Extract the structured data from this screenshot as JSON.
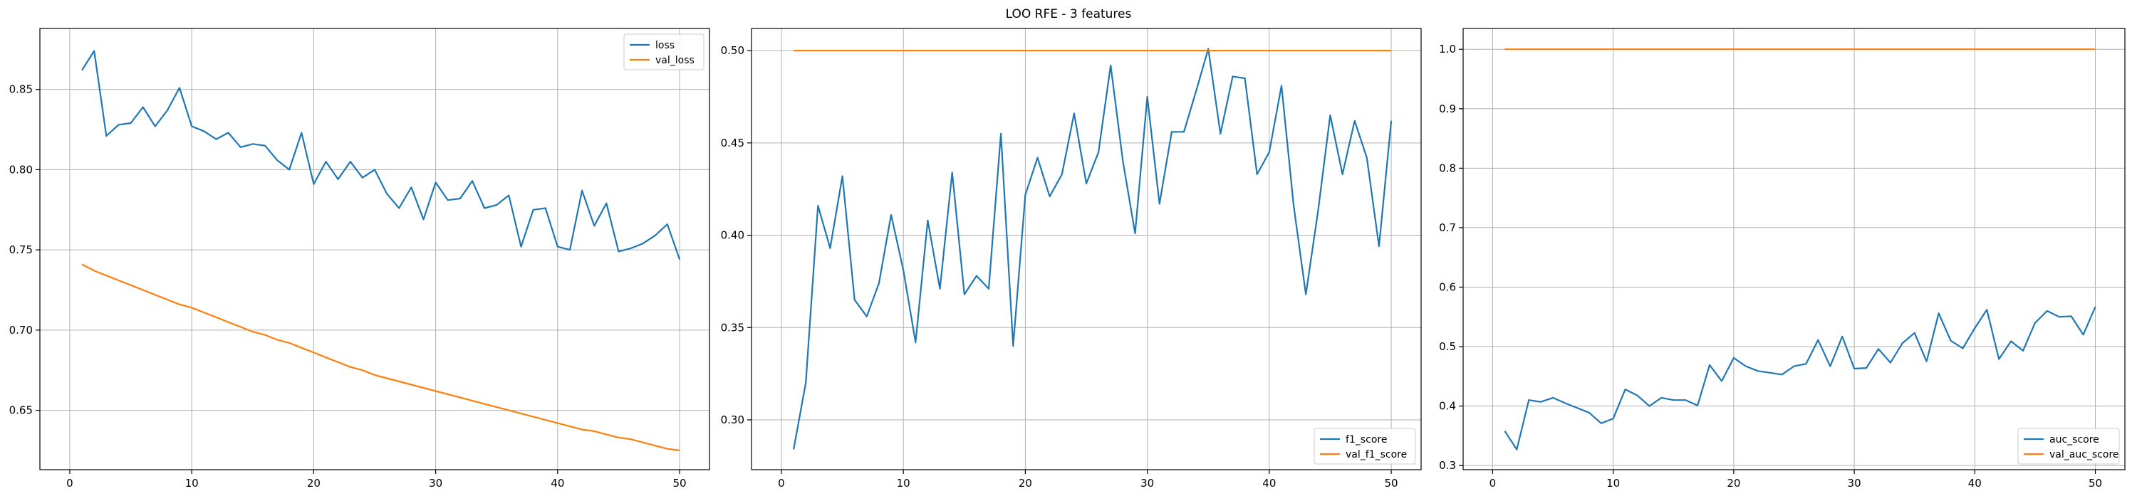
{
  "figure": {
    "title": "LOO RFE - 3 features"
  },
  "colors": {
    "train": "#1f77b4",
    "val": "#ff7f0e",
    "grid": "#b0b0b0",
    "axis": "#000000"
  },
  "chart_data": [
    {
      "type": "line",
      "xlim": [
        -2.45,
        52.45
      ],
      "ylim": [
        0.613,
        0.888
      ],
      "xticks": [
        0,
        10,
        20,
        30,
        40,
        50
      ],
      "yticks": [
        0.65,
        0.7,
        0.75,
        0.8,
        0.85
      ],
      "ytick_labels": [
        "0.65",
        "0.70",
        "0.75",
        "0.80",
        "0.85"
      ],
      "grid": true,
      "legend_loc": "upper-right",
      "x": [
        1,
        2,
        3,
        4,
        5,
        6,
        7,
        8,
        9,
        10,
        11,
        12,
        13,
        14,
        15,
        16,
        17,
        18,
        19,
        20,
        21,
        22,
        23,
        24,
        25,
        26,
        27,
        28,
        29,
        30,
        31,
        32,
        33,
        34,
        35,
        36,
        37,
        38,
        39,
        40,
        41,
        42,
        43,
        44,
        45,
        46,
        47,
        48,
        49,
        50
      ],
      "series": [
        {
          "name": "loss",
          "color_key": "train",
          "values": [
            0.862,
            0.874,
            0.821,
            0.828,
            0.829,
            0.839,
            0.827,
            0.837,
            0.851,
            0.827,
            0.824,
            0.819,
            0.823,
            0.814,
            0.816,
            0.815,
            0.806,
            0.8,
            0.823,
            0.791,
            0.805,
            0.794,
            0.805,
            0.795,
            0.8,
            0.785,
            0.776,
            0.789,
            0.769,
            0.792,
            0.781,
            0.782,
            0.793,
            0.776,
            0.778,
            0.784,
            0.752,
            0.775,
            0.776,
            0.752,
            0.75,
            0.787,
            0.765,
            0.779,
            0.749,
            0.751,
            0.754,
            0.759,
            0.766,
            0.744
          ]
        },
        {
          "name": "val_loss",
          "color_key": "val",
          "values": [
            0.741,
            0.737,
            0.734,
            0.731,
            0.728,
            0.725,
            0.722,
            0.719,
            0.716,
            0.714,
            0.711,
            0.708,
            0.705,
            0.702,
            0.699,
            0.697,
            0.694,
            0.692,
            0.689,
            0.686,
            0.683,
            0.68,
            0.677,
            0.675,
            0.672,
            0.67,
            0.668,
            0.666,
            0.664,
            0.662,
            0.66,
            0.658,
            0.656,
            0.654,
            0.652,
            0.65,
            0.648,
            0.646,
            0.644,
            0.642,
            0.64,
            0.638,
            0.637,
            0.635,
            0.633,
            0.632,
            0.63,
            0.628,
            0.626,
            0.625
          ]
        }
      ]
    },
    {
      "type": "line",
      "xlim": [
        -2.45,
        52.45
      ],
      "ylim": [
        0.273,
        0.512
      ],
      "xticks": [
        0,
        10,
        20,
        30,
        40,
        50
      ],
      "yticks": [
        0.3,
        0.35,
        0.4,
        0.45,
        0.5
      ],
      "ytick_labels": [
        "0.30",
        "0.35",
        "0.40",
        "0.45",
        "0.50"
      ],
      "grid": true,
      "legend_loc": "lower-right",
      "x": [
        1,
        2,
        3,
        4,
        5,
        6,
        7,
        8,
        9,
        10,
        11,
        12,
        13,
        14,
        15,
        16,
        17,
        18,
        19,
        20,
        21,
        22,
        23,
        24,
        25,
        26,
        27,
        28,
        29,
        30,
        31,
        32,
        33,
        34,
        35,
        36,
        37,
        38,
        39,
        40,
        41,
        42,
        43,
        44,
        45,
        46,
        47,
        48,
        49,
        50
      ],
      "series": [
        {
          "name": "f1_score",
          "color_key": "train",
          "values": [
            0.284,
            0.32,
            0.416,
            0.393,
            0.432,
            0.365,
            0.356,
            0.374,
            0.411,
            0.381,
            0.342,
            0.408,
            0.371,
            0.434,
            0.368,
            0.378,
            0.371,
            0.455,
            0.34,
            0.422,
            0.442,
            0.421,
            0.433,
            0.466,
            0.428,
            0.445,
            0.492,
            0.44,
            0.401,
            0.475,
            0.417,
            0.456,
            0.456,
            0.478,
            0.501,
            0.455,
            0.486,
            0.485,
            0.433,
            0.445,
            0.481,
            0.416,
            0.368,
            0.413,
            0.465,
            0.433,
            0.462,
            0.442,
            0.394,
            0.462
          ]
        },
        {
          "name": "val_f1_score",
          "color_key": "val",
          "values": [
            0.5,
            0.5,
            0.5,
            0.5,
            0.5,
            0.5,
            0.5,
            0.5,
            0.5,
            0.5,
            0.5,
            0.5,
            0.5,
            0.5,
            0.5,
            0.5,
            0.5,
            0.5,
            0.5,
            0.5,
            0.5,
            0.5,
            0.5,
            0.5,
            0.5,
            0.5,
            0.5,
            0.5,
            0.5,
            0.5,
            0.5,
            0.5,
            0.5,
            0.5,
            0.5,
            0.5,
            0.5,
            0.5,
            0.5,
            0.5,
            0.5,
            0.5,
            0.5,
            0.5,
            0.5,
            0.5,
            0.5,
            0.5,
            0.5,
            0.5
          ]
        }
      ]
    },
    {
      "type": "line",
      "xlim": [
        -2.45,
        52.45
      ],
      "ylim": [
        0.293,
        1.035
      ],
      "xticks": [
        0,
        10,
        20,
        30,
        40,
        50
      ],
      "yticks": [
        0.3,
        0.4,
        0.5,
        0.6,
        0.7,
        0.8,
        0.9,
        1.0
      ],
      "ytick_labels": [
        "0.3",
        "0.4",
        "0.5",
        "0.6",
        "0.7",
        "0.8",
        "0.9",
        "1.0"
      ],
      "grid": true,
      "legend_loc": "lower-right",
      "x": [
        1,
        2,
        3,
        4,
        5,
        6,
        7,
        8,
        9,
        10,
        11,
        12,
        13,
        14,
        15,
        16,
        17,
        18,
        19,
        20,
        21,
        22,
        23,
        24,
        25,
        26,
        27,
        28,
        29,
        30,
        31,
        32,
        33,
        34,
        35,
        36,
        37,
        38,
        39,
        40,
        41,
        42,
        43,
        44,
        45,
        46,
        47,
        48,
        49,
        50
      ],
      "series": [
        {
          "name": "auc_score",
          "color_key": "train",
          "values": [
            0.358,
            0.327,
            0.41,
            0.407,
            0.414,
            0.405,
            0.397,
            0.389,
            0.371,
            0.379,
            0.428,
            0.418,
            0.4,
            0.414,
            0.41,
            0.41,
            0.401,
            0.469,
            0.442,
            0.481,
            0.467,
            0.459,
            0.456,
            0.453,
            0.467,
            0.471,
            0.511,
            0.467,
            0.517,
            0.463,
            0.464,
            0.496,
            0.473,
            0.506,
            0.523,
            0.475,
            0.556,
            0.51,
            0.497,
            0.531,
            0.562,
            0.479,
            0.509,
            0.493,
            0.54,
            0.56,
            0.55,
            0.551,
            0.52,
            0.567
          ]
        },
        {
          "name": "val_auc_score",
          "color_key": "val",
          "values": [
            1.0,
            1.0,
            1.0,
            1.0,
            1.0,
            1.0,
            1.0,
            1.0,
            1.0,
            1.0,
            1.0,
            1.0,
            1.0,
            1.0,
            1.0,
            1.0,
            1.0,
            1.0,
            1.0,
            1.0,
            1.0,
            1.0,
            1.0,
            1.0,
            1.0,
            1.0,
            1.0,
            1.0,
            1.0,
            1.0,
            1.0,
            1.0,
            1.0,
            1.0,
            1.0,
            1.0,
            1.0,
            1.0,
            1.0,
            1.0,
            1.0,
            1.0,
            1.0,
            1.0,
            1.0,
            1.0,
            1.0,
            1.0,
            1.0,
            1.0
          ]
        }
      ]
    }
  ]
}
